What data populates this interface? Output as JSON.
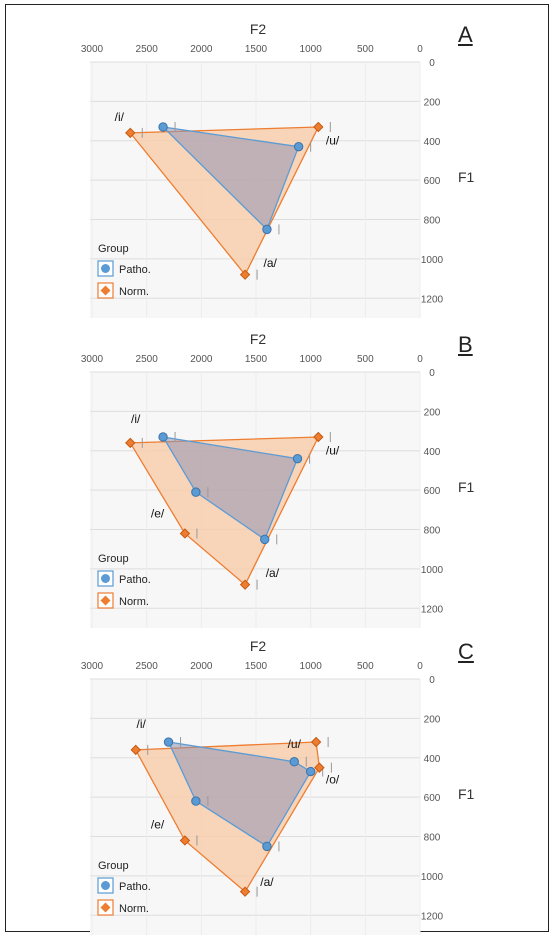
{
  "chart_data": [
    {
      "panel": "A",
      "type": "scatter",
      "xlabel": "F2",
      "ylabel": "F1",
      "xlim": [
        3000,
        0
      ],
      "ylim": [
        1300,
        0
      ],
      "xticks": [
        3000,
        2500,
        2000,
        1500,
        1000,
        500,
        0
      ],
      "yticks": [
        0,
        200,
        400,
        600,
        800,
        1000,
        1200
      ],
      "legend_title": "Group",
      "legend_position": "bottom-left",
      "series": [
        {
          "name": "Patho.",
          "color": "#5b9bd5",
          "marker": "circle",
          "points": [
            {
              "vowel": "/i/",
              "F2": 2350,
              "F1": 330
            },
            {
              "vowel": "/u/",
              "F2": 1110,
              "F1": 430
            },
            {
              "vowel": "/a/",
              "F2": 1400,
              "F1": 850
            }
          ]
        },
        {
          "name": "Norm.",
          "color": "#ed7d31",
          "marker": "diamond",
          "points": [
            {
              "vowel": "/i/",
              "F2": 2650,
              "F1": 360
            },
            {
              "vowel": "/u/",
              "F2": 930,
              "F1": 330
            },
            {
              "vowel": "/a/",
              "F2": 1600,
              "F1": 1080
            }
          ]
        }
      ],
      "vowel_labels": [
        {
          "text": "/i/",
          "F2": 2750,
          "F1": 300
        },
        {
          "text": "/u/",
          "F2": 800,
          "F1": 420
        },
        {
          "text": "/a/",
          "F2": 1370,
          "F1": 1040
        }
      ]
    },
    {
      "panel": "B",
      "type": "scatter",
      "xlabel": "F2",
      "ylabel": "F1",
      "xlim": [
        3000,
        0
      ],
      "ylim": [
        1300,
        0
      ],
      "xticks": [
        3000,
        2500,
        2000,
        1500,
        1000,
        500,
        0
      ],
      "yticks": [
        0,
        200,
        400,
        600,
        800,
        1000,
        1200
      ],
      "legend_title": "Group",
      "legend_position": "bottom-left",
      "series": [
        {
          "name": "Patho.",
          "color": "#5b9bd5",
          "marker": "circle",
          "points": [
            {
              "vowel": "/i/",
              "F2": 2350,
              "F1": 330
            },
            {
              "vowel": "/u/",
              "F2": 1120,
              "F1": 440
            },
            {
              "vowel": "/a/",
              "F2": 1420,
              "F1": 850
            },
            {
              "vowel": "/e/",
              "F2": 2050,
              "F1": 610
            }
          ]
        },
        {
          "name": "Norm.",
          "color": "#ed7d31",
          "marker": "diamond",
          "points": [
            {
              "vowel": "/i/",
              "F2": 2650,
              "F1": 360
            },
            {
              "vowel": "/u/",
              "F2": 930,
              "F1": 330
            },
            {
              "vowel": "/a/",
              "F2": 1600,
              "F1": 1080
            },
            {
              "vowel": "/e/",
              "F2": 2150,
              "F1": 820
            }
          ]
        }
      ],
      "vowel_labels": [
        {
          "text": "/i/",
          "F2": 2600,
          "F1": 260
        },
        {
          "text": "/u/",
          "F2": 800,
          "F1": 420
        },
        {
          "text": "/e/",
          "F2": 2400,
          "F1": 740
        },
        {
          "text": "/a/",
          "F2": 1350,
          "F1": 1040
        }
      ]
    },
    {
      "panel": "C",
      "type": "scatter",
      "xlabel": "F2",
      "ylabel": "F1",
      "xlim": [
        3000,
        0
      ],
      "ylim": [
        1300,
        0
      ],
      "xticks": [
        3000,
        2500,
        2000,
        1500,
        1000,
        500,
        0
      ],
      "yticks": [
        0,
        200,
        400,
        600,
        800,
        1000,
        1200
      ],
      "legend_title": "Group",
      "legend_position": "bottom-left",
      "series": [
        {
          "name": "Patho.",
          "color": "#5b9bd5",
          "marker": "circle",
          "points": [
            {
              "vowel": "/i/",
              "F2": 2300,
              "F1": 320
            },
            {
              "vowel": "/u/",
              "F2": 1150,
              "F1": 420
            },
            {
              "vowel": "/o/",
              "F2": 1000,
              "F1": 470
            },
            {
              "vowel": "/a/",
              "F2": 1400,
              "F1": 850
            },
            {
              "vowel": "/e/",
              "F2": 2050,
              "F1": 620
            }
          ]
        },
        {
          "name": "Norm.",
          "color": "#ed7d31",
          "marker": "diamond",
          "points": [
            {
              "vowel": "/i/",
              "F2": 2600,
              "F1": 360
            },
            {
              "vowel": "/u/",
              "F2": 950,
              "F1": 320
            },
            {
              "vowel": "/o/",
              "F2": 920,
              "F1": 450
            },
            {
              "vowel": "/a/",
              "F2": 1600,
              "F1": 1080
            },
            {
              "vowel": "/e/",
              "F2": 2150,
              "F1": 820
            }
          ]
        }
      ],
      "vowel_labels": [
        {
          "text": "/i/",
          "F2": 2550,
          "F1": 250
        },
        {
          "text": "/u/",
          "F2": 1150,
          "F1": 350
        },
        {
          "text": "/o/",
          "F2": 800,
          "F1": 530
        },
        {
          "text": "/e/",
          "F2": 2400,
          "F1": 760
        },
        {
          "text": "/a/",
          "F2": 1400,
          "F1": 1050
        }
      ]
    }
  ]
}
